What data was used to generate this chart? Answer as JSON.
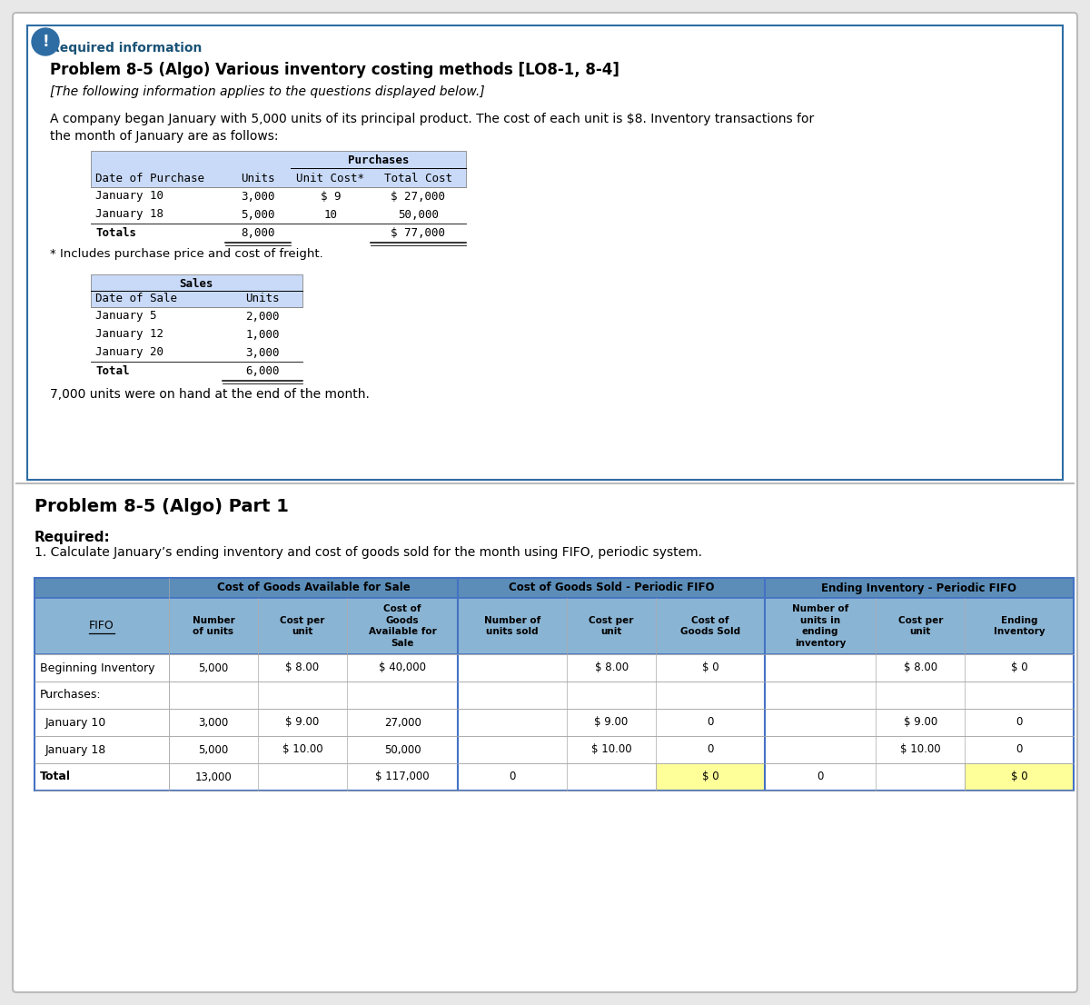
{
  "bg_color": "#e8e8e8",
  "page_bg": "#ffffff",
  "required_info_color": "#1a5276",
  "title_bold": "Problem 8-5 (Algo) Various inventory costing methods [LO8-1, 8-4]",
  "subtitle_italic": "[The following information applies to the questions displayed below.]",
  "body_text1": "A company began January with 5,000 units of its principal product. The cost of each unit is $8. Inventory transactions for",
  "body_text2": "the month of January are as follows:",
  "purchases_table": {
    "rows": [
      [
        "January 10",
        "3,000",
        "$ 9",
        "$ 27,000"
      ],
      [
        "January 18",
        "5,000",
        "10",
        "50,000"
      ],
      [
        "Totals",
        "8,000",
        "",
        "$ 77,000"
      ]
    ]
  },
  "footnote": "* Includes purchase price and cost of freight.",
  "sales_table": {
    "header": "Sales",
    "cols": [
      "Date of Sale",
      "Units"
    ],
    "rows": [
      [
        "January 5",
        "2,000"
      ],
      [
        "January 12",
        "1,000"
      ],
      [
        "January 20",
        "3,000"
      ],
      [
        "Total",
        "6,000"
      ]
    ]
  },
  "units_on_hand": "7,000 units were on hand at the end of the month.",
  "part1_title": "Problem 8-5 (Algo) Part 1",
  "required_label": "Required:",
  "required_text": "1. Calculate January’s ending inventory and cost of goods sold for the month using FIFO, periodic system.",
  "fifo_table": {
    "rows": [
      {
        "label": "Beginning Inventory",
        "data": [
          "5,000",
          "$ 8.00",
          "$ 40,000",
          "",
          "$ 8.00",
          "$ 0",
          "",
          "$ 8.00",
          "$ 0"
        ],
        "highlight": []
      },
      {
        "label": "Purchases:",
        "data": [
          "",
          "",
          "",
          "",
          "",
          "",
          "",
          "",
          ""
        ],
        "highlight": []
      },
      {
        "label": "January 10",
        "data": [
          "3,000",
          "$ 9.00",
          "27,000",
          "",
          "$ 9.00",
          "0",
          "",
          "$ 9.00",
          "0"
        ],
        "highlight": []
      },
      {
        "label": "January 18",
        "data": [
          "5,000",
          "$ 10.00",
          "50,000",
          "",
          "$ 10.00",
          "0",
          "",
          "$ 10.00",
          "0"
        ],
        "highlight": []
      },
      {
        "label": "Total",
        "data": [
          "13,000",
          "",
          "$ 117,000",
          "0",
          "",
          "$ 0",
          "0",
          "",
          "$ 0"
        ],
        "highlight": [
          5,
          8
        ]
      }
    ],
    "header_bg": "#5b8db8",
    "subheader_bg": "#8ab4d4",
    "highlight_color": "#ffff99",
    "border_blue": "#4472c4"
  }
}
